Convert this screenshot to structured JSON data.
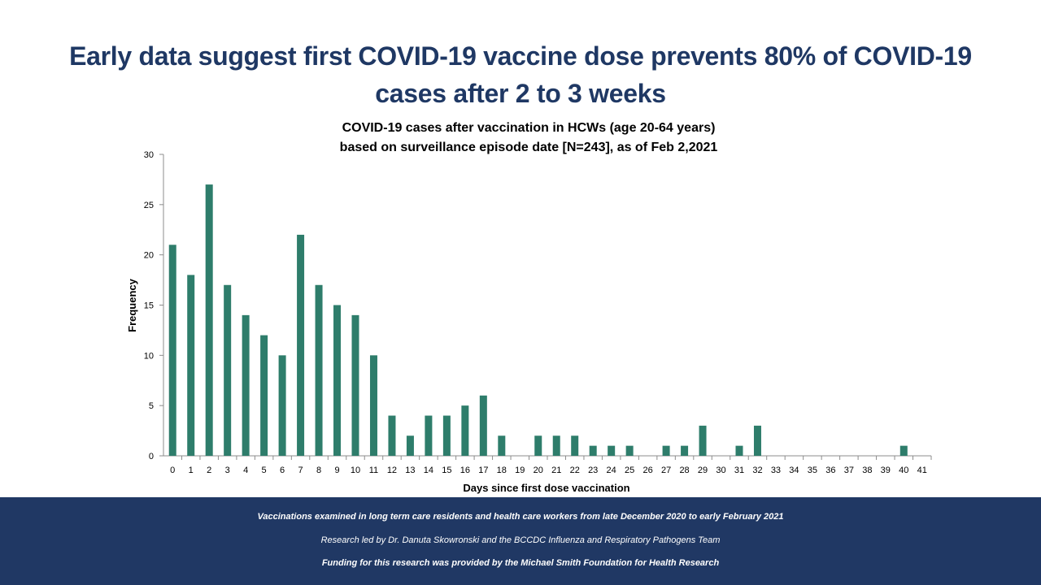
{
  "slide": {
    "title": "Early data suggest first COVID-19 vaccine dose prevents 80% of COVID-19 cases after 2 to 3 weeks"
  },
  "chart_data": {
    "type": "bar",
    "title_line1": "COVID-19 cases after vaccination in HCWs (age 20-64 years)",
    "title_line2": "based on surveillance episode date [N=243], as of Feb 2,2021",
    "xlabel": "Days since first dose vaccination",
    "ylabel": "Frequency",
    "ylim": [
      0,
      30
    ],
    "yticks": [
      0,
      5,
      10,
      15,
      20,
      25,
      30
    ],
    "grid": false,
    "bar_color": "#2e7d6b",
    "categories": [
      "0",
      "1",
      "2",
      "3",
      "4",
      "5",
      "6",
      "7",
      "8",
      "9",
      "10",
      "11",
      "12",
      "13",
      "14",
      "15",
      "16",
      "17",
      "18",
      "19",
      "20",
      "21",
      "22",
      "23",
      "24",
      "25",
      "26",
      "27",
      "28",
      "29",
      "30",
      "31",
      "32",
      "33",
      "34",
      "35",
      "36",
      "37",
      "38",
      "39",
      "40",
      "41"
    ],
    "values": [
      21,
      18,
      27,
      17,
      14,
      12,
      10,
      22,
      17,
      15,
      14,
      10,
      4,
      2,
      4,
      4,
      5,
      6,
      2,
      0,
      2,
      2,
      2,
      1,
      1,
      1,
      0,
      1,
      1,
      3,
      0,
      1,
      3,
      0,
      0,
      0,
      0,
      0,
      0,
      0,
      1,
      0
    ]
  },
  "footer": {
    "line1": "Vaccinations examined in long term care residents and health care workers from late December 2020 to early February 2021",
    "line2": "Research led by Dr. Danuta Skowronski and the BCCDC Influenza and Respiratory Pathogens Team",
    "line3": "Funding for this research was provided by the Michael Smith Foundation for Health Research"
  },
  "colors": {
    "title": "#1f3864",
    "footer_bg": "#203864",
    "bar": "#2e7d6b"
  }
}
